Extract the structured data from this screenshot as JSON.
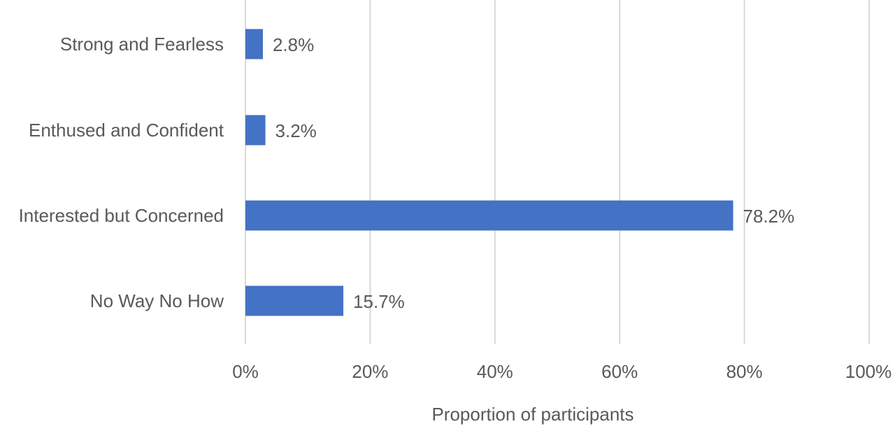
{
  "chart_data": {
    "type": "bar",
    "orientation": "horizontal",
    "title": "",
    "xlabel": "Proportion of participants",
    "ylabel": "",
    "categories": [
      "Strong and Fearless",
      "Enthused and Confident",
      "Interested but Concerned",
      "No Way No How"
    ],
    "values": [
      2.8,
      3.2,
      78.2,
      15.7
    ],
    "value_labels": [
      "2.8%",
      "3.2%",
      "78.2%",
      "15.7%"
    ],
    "xlim": [
      0,
      100
    ],
    "x_ticks": [
      0,
      20,
      40,
      60,
      80,
      100
    ],
    "x_tick_labels": [
      "0%",
      "20%",
      "40%",
      "60%",
      "80%",
      "100%"
    ],
    "grid": "vertical",
    "legend": "none",
    "colors": {
      "bar": "#4472C4",
      "grid": "#D9D9D9",
      "text": "#595959"
    }
  }
}
